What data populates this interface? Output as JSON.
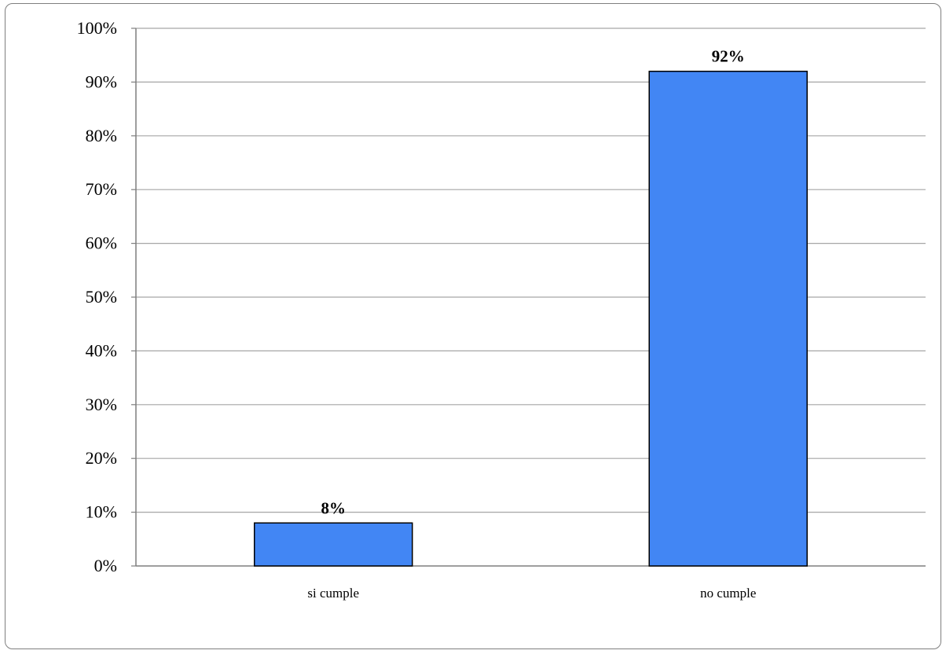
{
  "chart_data": {
    "type": "bar",
    "categories": [
      "si cumple",
      "no cumple"
    ],
    "values": [
      8,
      92
    ],
    "value_labels": [
      "8%",
      "92%"
    ],
    "ylim": [
      0,
      100
    ],
    "yticks": [
      0,
      10,
      20,
      30,
      40,
      50,
      60,
      70,
      80,
      90,
      100
    ],
    "ytick_labels": [
      "0%",
      "10%",
      "20%",
      "30%",
      "40%",
      "50%",
      "60%",
      "70%",
      "80%",
      "90%",
      "100%"
    ],
    "grid": true,
    "legend": "none",
    "colors": {
      "bar": "#4286f4",
      "bar_edge": "#000000",
      "grid": "#a6a6a6",
      "axis": "#7f7f7f"
    }
  }
}
